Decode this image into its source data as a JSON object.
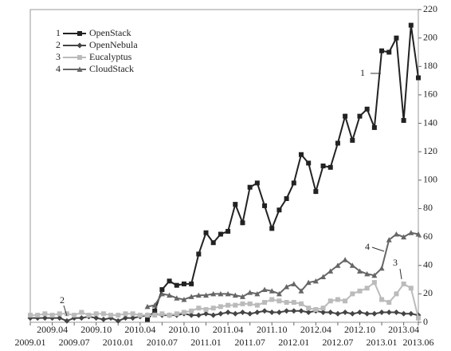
{
  "chart_data": {
    "type": "line",
    "categories": [
      "2009.01",
      null,
      null,
      "2009.04",
      null,
      null,
      "2009.07",
      null,
      null,
      "2009.10",
      null,
      null,
      "2010.01",
      null,
      null,
      "2010.04",
      null,
      null,
      "2010.07",
      null,
      null,
      "2010.10",
      null,
      null,
      "2011.01",
      null,
      null,
      "2011.04",
      null,
      null,
      "2011.07",
      null,
      null,
      "2011.10",
      null,
      null,
      "2012.01",
      null,
      null,
      "2012.04",
      null,
      null,
      "2012.07",
      null,
      null,
      "2012.10",
      null,
      null,
      "2013.01",
      null,
      null,
      "2013.04",
      null,
      "2013.06"
    ],
    "series": [
      {
        "label": "1",
        "name": "OpenStack",
        "color": "#222222",
        "marker": "square",
        "values": [
          null,
          null,
          null,
          null,
          null,
          null,
          null,
          null,
          null,
          null,
          null,
          null,
          null,
          null,
          null,
          null,
          2,
          8,
          23,
          29,
          26,
          27,
          27,
          48,
          63,
          56,
          62,
          64,
          83,
          70,
          95,
          98,
          82,
          66,
          79,
          87,
          98,
          118,
          112,
          92,
          110,
          109,
          126,
          145,
          128,
          145,
          150,
          137,
          191,
          190,
          200,
          142,
          209,
          172
        ]
      },
      {
        "label": "2",
        "name": "OpenNebula",
        "color": "#444444",
        "marker": "diamond",
        "values": [
          3,
          3,
          3,
          3,
          3,
          1,
          3,
          3,
          4,
          3,
          2,
          3,
          1,
          3,
          3,
          4,
          5,
          6,
          5,
          5,
          5,
          6,
          5,
          5,
          6,
          5,
          6,
          7,
          6,
          7,
          6,
          7,
          8,
          7,
          7,
          8,
          8,
          8,
          7,
          8,
          7,
          7,
          6,
          7,
          6,
          7,
          6,
          6,
          7,
          7,
          7,
          6,
          6,
          5
        ]
      },
      {
        "label": "3",
        "name": "Eucalyptus",
        "color": "#bbbbbb",
        "marker": "square",
        "values": [
          5,
          5,
          6,
          5,
          6,
          6,
          5,
          7,
          5,
          6,
          6,
          5,
          5,
          6,
          6,
          5,
          5,
          5,
          6,
          5,
          6,
          7,
          8,
          10,
          9,
          10,
          11,
          12,
          12,
          13,
          13,
          12,
          14,
          16,
          15,
          14,
          14,
          13,
          10,
          9,
          10,
          15,
          16,
          15,
          20,
          22,
          24,
          28,
          16,
          14,
          20,
          27,
          24,
          3
        ]
      },
      {
        "label": "4",
        "name": "CloudStack",
        "color": "#666666",
        "marker": "triangle",
        "values": [
          null,
          null,
          null,
          null,
          null,
          null,
          null,
          null,
          null,
          null,
          null,
          null,
          null,
          null,
          null,
          null,
          11,
          12,
          20,
          19,
          17,
          16,
          18,
          19,
          19,
          20,
          20,
          20,
          19,
          18,
          21,
          20,
          23,
          22,
          20,
          25,
          27,
          22,
          28,
          29,
          32,
          36,
          40,
          44,
          40,
          36,
          34,
          33,
          38,
          58,
          62,
          60,
          63,
          62
        ]
      }
    ],
    "annotations": [
      "1",
      "2",
      "3",
      "4"
    ],
    "ylim": [
      0,
      220
    ],
    "yticks": [
      0,
      20,
      40,
      60,
      80,
      100,
      120,
      140,
      160,
      180,
      200,
      220
    ],
    "grid": false,
    "legend": "upper left"
  }
}
